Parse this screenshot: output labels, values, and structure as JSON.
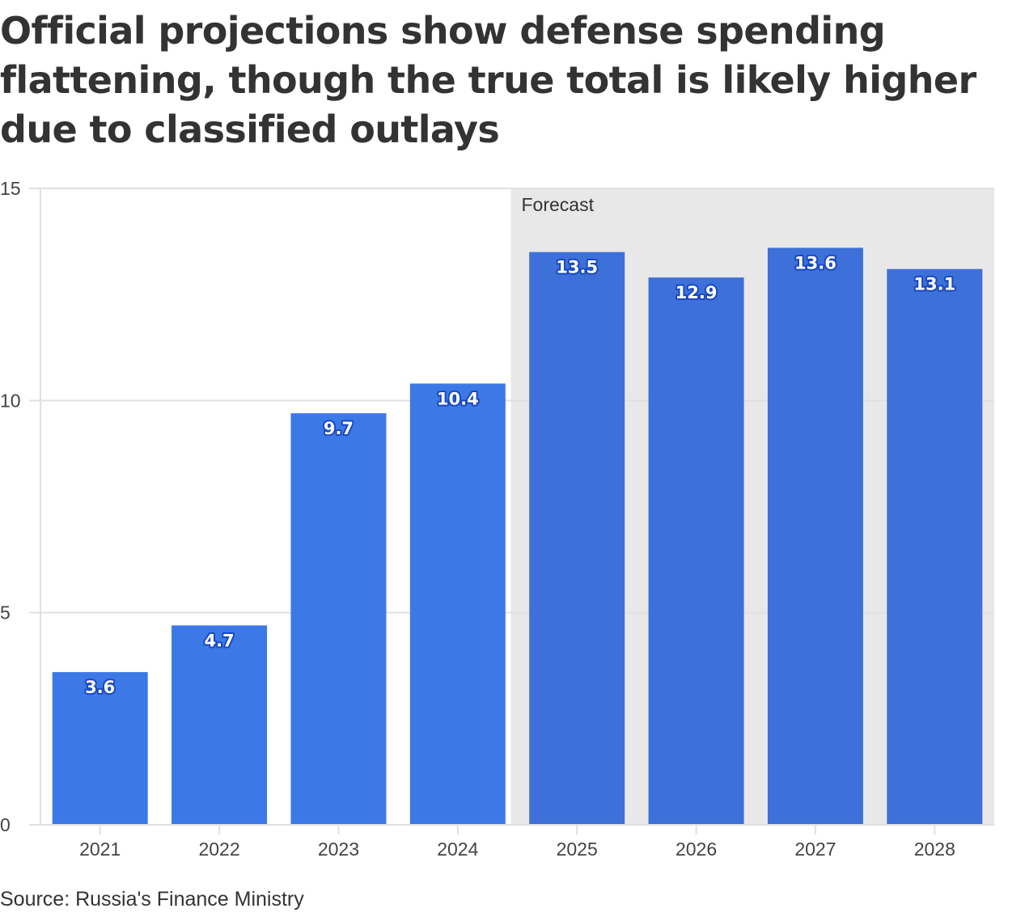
{
  "chart_data": {
    "type": "bar",
    "title": "Official projections show defense spending flattening, though the true total is likely higher due to classified outlays",
    "source": "Source: Russia's Finance Ministry",
    "categories": [
      "2021",
      "2022",
      "2023",
      "2024",
      "2025",
      "2026",
      "2027",
      "2028"
    ],
    "values": [
      3.6,
      4.7,
      9.7,
      10.4,
      13.5,
      12.9,
      13.6,
      13.1
    ],
    "value_labels": [
      "3.6",
      "4.7",
      "9.7",
      "10.4",
      "13.5",
      "12.9",
      "13.6",
      "13.1"
    ],
    "ylim": [
      0,
      15
    ],
    "yticks": [
      0,
      5,
      10,
      15
    ],
    "ytick_labels": [
      "0",
      "5",
      "10",
      "15"
    ],
    "xlabel": "",
    "ylabel": "",
    "grid": true,
    "forecast": {
      "label": "Forecast",
      "start_category": "2025",
      "end_category": "2028"
    },
    "colors": {
      "actual_bar": "#3d79e6",
      "forecast_bar": "#3d70d8",
      "forecast_shade": "#e8e8e8",
      "gridline": "#e0e0e0",
      "label_outline": "#1848c0",
      "text": "#333333"
    }
  }
}
